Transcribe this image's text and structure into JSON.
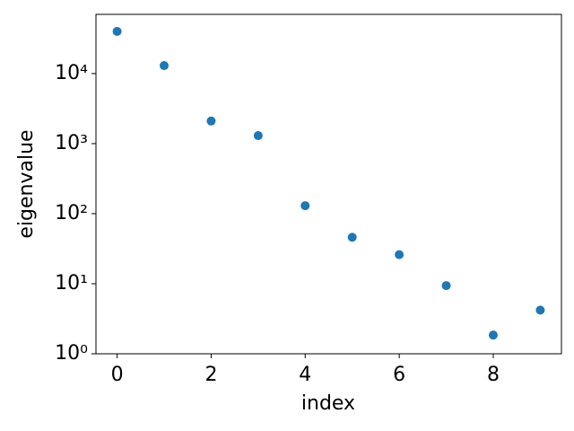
{
  "chart_data": {
    "type": "scatter",
    "xlabel": "index",
    "ylabel": "eigenvalue",
    "x": [
      0,
      1,
      2,
      3,
      4,
      5,
      6,
      7,
      8,
      9
    ],
    "series": [
      {
        "color": "#1f77b4",
        "values": [
          40000,
          13000,
          2100,
          1300,
          130,
          46,
          26,
          9.4,
          1.85,
          4.2
        ]
      }
    ],
    "xlim": [
      -0.45,
      9.45
    ],
    "xticks": [
      0,
      2,
      4,
      6,
      8
    ],
    "ylim": [
      1,
      70000
    ],
    "yscale": "log",
    "yticks": [
      {
        "value": 1,
        "label": "10⁰"
      },
      {
        "value": 10,
        "label": "10¹"
      },
      {
        "value": 100,
        "label": "10²"
      },
      {
        "value": 1000,
        "label": "10³"
      },
      {
        "value": 10000,
        "label": "10⁴"
      }
    ]
  }
}
